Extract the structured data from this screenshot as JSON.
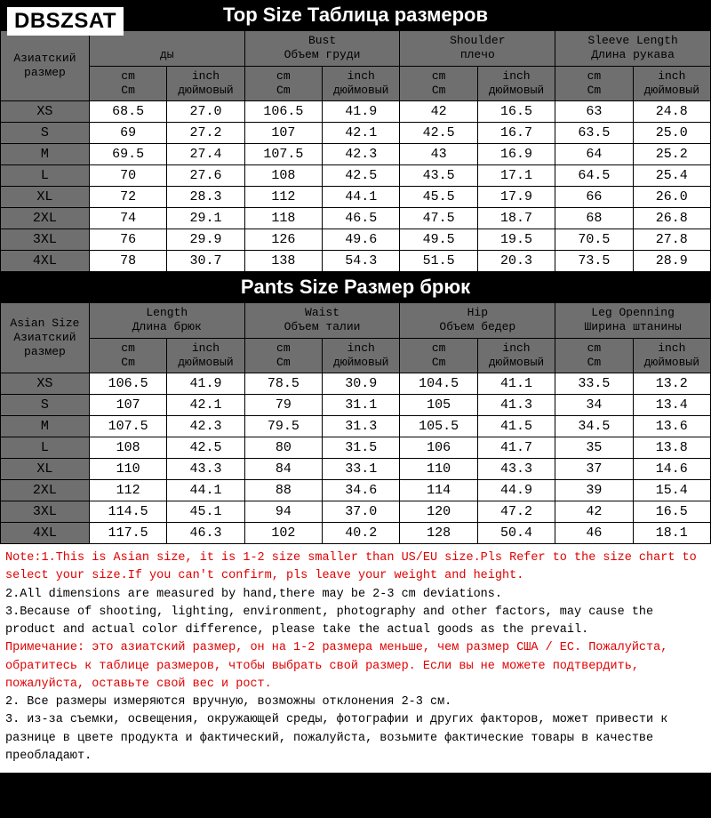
{
  "watermark": "DBSZSAT",
  "top": {
    "title": "Top Size   Таблица размеров",
    "size_header": "Азиатский\nразмер",
    "cols": [
      {
        "en": "",
        "ru": "ды",
        "cm": "cm",
        "cmr": "Cm",
        "in": "inch",
        "inr": "дюймовый"
      },
      {
        "en": "Bust",
        "ru": "Объем груди",
        "cm": "cm",
        "cmr": "Cm",
        "in": "inch",
        "inr": "дюймовый"
      },
      {
        "en": "Shoulder",
        "ru": "плечо",
        "cm": "cm",
        "cmr": "Cm",
        "in": "inch",
        "inr": "дюймовый"
      },
      {
        "en": "Sleeve Length",
        "ru": "Длина рукава",
        "cm": "cm",
        "cmr": "Cm",
        "in": "inch",
        "inr": "дюймовый"
      }
    ],
    "sizes": [
      "XS",
      "S",
      "M",
      "L",
      "XL",
      "2XL",
      "3XL",
      "4XL"
    ],
    "rows": [
      [
        "68.5",
        "27.0",
        "106.5",
        "41.9",
        "42",
        "16.5",
        "63",
        "24.8"
      ],
      [
        "69",
        "27.2",
        "107",
        "42.1",
        "42.5",
        "16.7",
        "63.5",
        "25.0"
      ],
      [
        "69.5",
        "27.4",
        "107.5",
        "42.3",
        "43",
        "16.9",
        "64",
        "25.2"
      ],
      [
        "70",
        "27.6",
        "108",
        "42.5",
        "43.5",
        "17.1",
        "64.5",
        "25.4"
      ],
      [
        "72",
        "28.3",
        "112",
        "44.1",
        "45.5",
        "17.9",
        "66",
        "26.0"
      ],
      [
        "74",
        "29.1",
        "118",
        "46.5",
        "47.5",
        "18.7",
        "68",
        "26.8"
      ],
      [
        "76",
        "29.9",
        "126",
        "49.6",
        "49.5",
        "19.5",
        "70.5",
        "27.8"
      ],
      [
        "78",
        "30.7",
        "138",
        "54.3",
        "51.5",
        "20.3",
        "73.5",
        "28.9"
      ]
    ]
  },
  "pants": {
    "title": "Pants Size   Размер брюк",
    "size_header": "Asian Size\nАзиатский\nразмер",
    "cols": [
      {
        "en": "Length",
        "ru": "Длина брюк",
        "cm": "cm",
        "cmr": "Cm",
        "in": "inch",
        "inr": "дюймовый"
      },
      {
        "en": "Waist",
        "ru": "Объем талии",
        "cm": "cm",
        "cmr": "Cm",
        "in": "inch",
        "inr": "дюймовый"
      },
      {
        "en": "Hip",
        "ru": "Объем бедер",
        "cm": "cm",
        "cmr": "Cm",
        "in": "inch",
        "inr": "дюймовый"
      },
      {
        "en": "Leg Openning",
        "ru": "Ширина штанины",
        "cm": "cm",
        "cmr": "Cm",
        "in": "inch",
        "inr": "дюймовый"
      }
    ],
    "sizes": [
      "XS",
      "S",
      "M",
      "L",
      "XL",
      "2XL",
      "3XL",
      "4XL"
    ],
    "rows": [
      [
        "106.5",
        "41.9",
        "78.5",
        "30.9",
        "104.5",
        "41.1",
        "33.5",
        "13.2"
      ],
      [
        "107",
        "42.1",
        "79",
        "31.1",
        "105",
        "41.3",
        "34",
        "13.4"
      ],
      [
        "107.5",
        "42.3",
        "79.5",
        "31.3",
        "105.5",
        "41.5",
        "34.5",
        "13.6"
      ],
      [
        "108",
        "42.5",
        "80",
        "31.5",
        "106",
        "41.7",
        "35",
        "13.8"
      ],
      [
        "110",
        "43.3",
        "84",
        "33.1",
        "110",
        "43.3",
        "37",
        "14.6"
      ],
      [
        "112",
        "44.1",
        "88",
        "34.6",
        "114",
        "44.9",
        "39",
        "15.4"
      ],
      [
        "114.5",
        "45.1",
        "94",
        "37.0",
        "120",
        "47.2",
        "42",
        "16.5"
      ],
      [
        "117.5",
        "46.3",
        "102",
        "40.2",
        "128",
        "50.4",
        "46",
        "18.1"
      ]
    ]
  },
  "notes": {
    "red1": "Note:1.This is Asian size, it is 1-2 size smaller than US/EU size.Pls Refer to the size chart to select your size.If you can't confirm, pls leave your weight and height.",
    "b2": "2.All dimensions are measured by hand,there may be 2-3 cm deviations.",
    "b3": "3.Because of shooting, lighting, environment, photography and other factors, may cause the product and actual color difference, please take the actual goods as the prevail.",
    "red2": "Примечание: это азиатский размер, он на 1-2 размера меньше, чем размер США / ЕС. Пожалуйста, обратитесь к таблице размеров, чтобы выбрать свой размер. Если вы не можете подтвердить, пожалуйста, оставьте свой вес и рост.",
    "r2": "2. Все размеры измеряются вручную, возможны отклонения 2-3 см.",
    "r3": "3. из-за съемки, освещения, окружающей среды, фотографии и других факторов, может привести к разнице в цвете продукта и фактический, пожалуйста, возьмите фактические товары в качестве преобладают."
  }
}
